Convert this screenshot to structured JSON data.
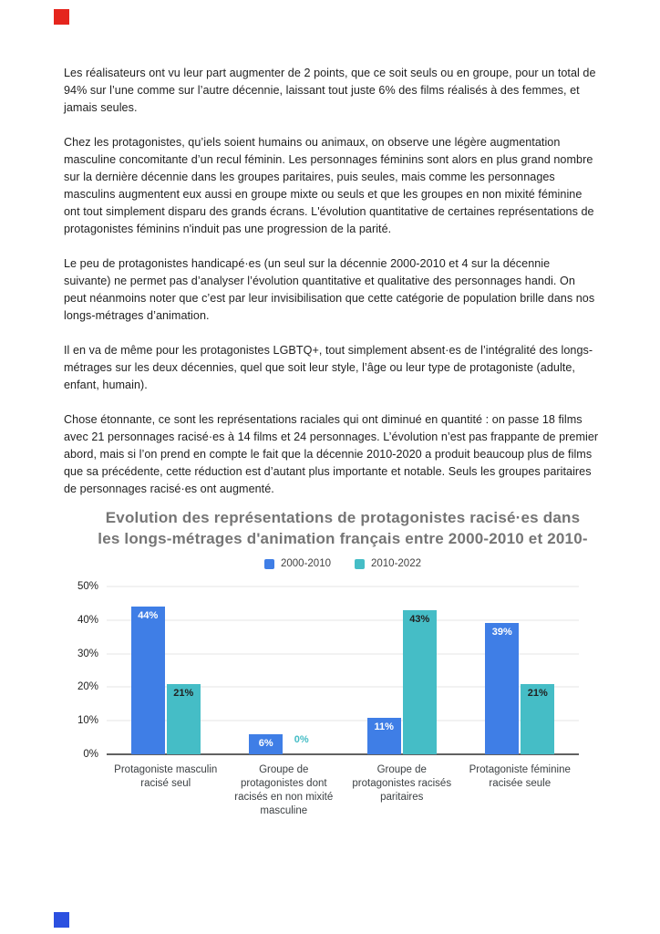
{
  "page": {
    "fragments": {
      "top_square_color": "#e5251d",
      "bottom_square_color": "#2b50e0"
    },
    "paragraphs": [
      "Les réalisateurs ont vu leur part augmenter de 2 points, que ce soit seuls ou en groupe, pour un total de 94% sur l’une comme sur l’autre décennie, laissant tout juste 6% des films réalisés à des femmes, et jamais seules.",
      "Chez les protagonistes, qu’iels soient humains ou animaux, on observe une légère augmentation masculine concomitante d’un recul féminin. Les personnages féminins sont alors en plus grand nombre sur la dernière décennie dans les groupes paritaires, puis seules, mais comme les personnages masculins augmentent eux aussi en groupe mixte ou seuls et que les groupes en non mixité féminine ont tout simplement disparu des grands écrans. L'évolution quantitative de certaines représentations de protagonistes féminins n'induit pas une progression de la parité.",
      "Le peu de protagonistes handicapé·es (un seul sur la décennie 2000-2010 et 4 sur la décennie suivante) ne permet pas d’analyser l’évolution quantitative et qualitative des personnages handi. On peut néanmoins noter que c’est par leur invisibilisation que cette catégorie de population brille dans nos longs-métrages d’animation.",
      "Il en va de même pour les protagonistes LGBTQ+, tout simplement absent·es de l’intégralité des longs-métrages sur les deux décennies, quel que soit leur style, l’âge ou leur type de protagoniste (adulte, enfant, humain).",
      "Chose étonnante, ce sont les représentations raciales qui ont diminué en quantité : on passe 18 films avec 21 personnages racisé·es à 14 films et 24 personnages. L’évolution n’est pas frappante de premier abord, mais si l’on prend en compte le fait que la décennie 2010-2020 a produit beaucoup plus de films que sa précédente, cette réduction est d’autant plus importante et notable. Seuls les groupes paritaires de personnages racisé·es ont augmenté."
    ]
  },
  "chart_data": {
    "type": "bar",
    "title": "Evolution des représentations de protagonistes racisé·es dans\nles longs-métrages d'animation français entre 2000-2010 et 2010-",
    "categories": [
      "Protagoniste masculin\nracisé seul",
      "Groupe de\nprotagonistes dont\nracisés en non mixité\nmasculine",
      "Groupe de\nprotagonistes racisés\nparitaires",
      "Protagoniste féminine\nracisée seule"
    ],
    "series": [
      {
        "name": "2000-2010",
        "color": "#3f7ee6",
        "values": [
          44,
          6,
          11,
          39
        ],
        "labels": [
          "44%",
          "6%",
          "11%",
          "39%"
        ]
      },
      {
        "name": "2010-2022",
        "color": "#45bdc6",
        "values": [
          21,
          0,
          43,
          21
        ],
        "labels": [
          "21%",
          "0%",
          "43%",
          "21%"
        ]
      }
    ],
    "yticks": [
      "50%",
      "40%",
      "30%",
      "20%",
      "10%",
      "0%"
    ],
    "ylim": [
      0,
      50
    ],
    "grid": true,
    "legend_position": "top",
    "colors": {
      "title": "#757575",
      "tick": "#1f1f1f",
      "category": "#3c4043",
      "legend_text": "#424242",
      "grid": "#e6e6e6",
      "baseline": "#616161",
      "label_on_series_0": "#ffffff",
      "label_on_series_1": "#212121"
    }
  }
}
